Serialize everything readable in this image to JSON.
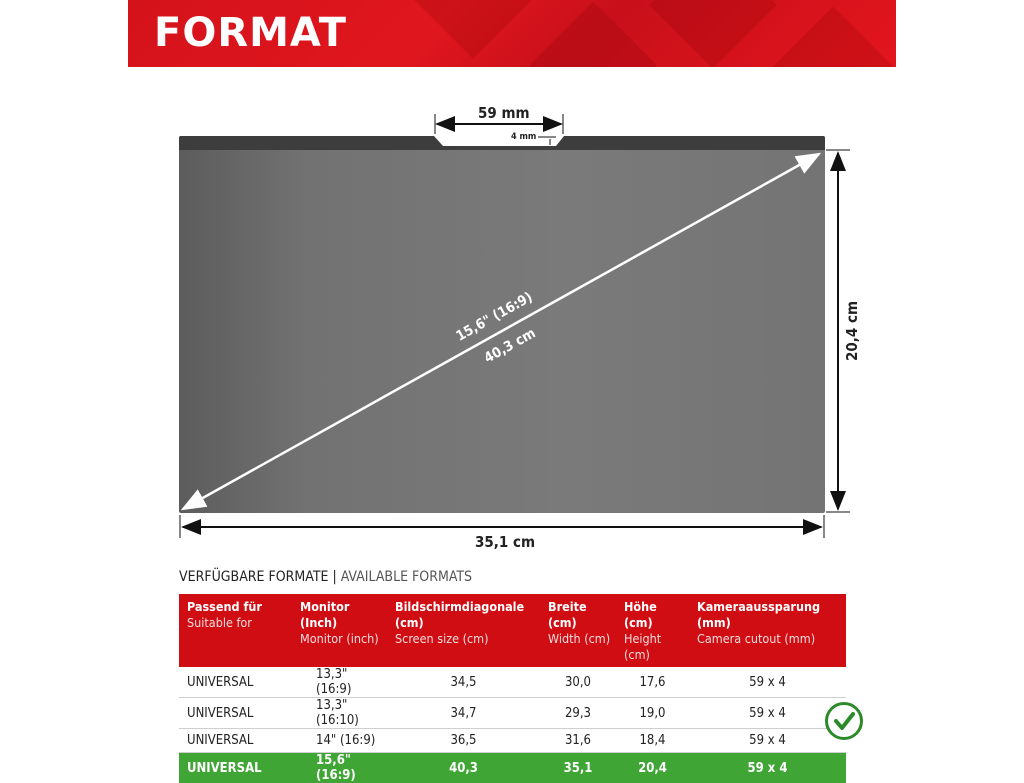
{
  "banner": {
    "title": "FORMAT",
    "color": "#d4121a"
  },
  "dimensions": {
    "cutout_width": "59 mm",
    "cutout_depth": "4 mm",
    "diagonal_inch": "15,6\" (16:9)",
    "diagonal_cm": "40,3 cm",
    "height": "20,4 cm",
    "width": "35,1 cm"
  },
  "section": {
    "title_de": "VERFÜGBARE FORMATE",
    "separator": " | ",
    "title_en": "AVAILABLE FORMATS"
  },
  "table": {
    "headers": [
      {
        "de": "Passend für",
        "en": "Suitable for"
      },
      {
        "de": "Monitor (Inch)",
        "en": "Monitor (inch)"
      },
      {
        "de": "Bildschirmdiagonale (cm)",
        "en": "Screen size (cm)"
      },
      {
        "de": "Breite (cm)",
        "en": "Width (cm)"
      },
      {
        "de": "Höhe (cm)",
        "en": "Height (cm)"
      },
      {
        "de": "Kameraaussparung (mm)",
        "en": "Camera cutout (mm)"
      }
    ],
    "rows": [
      [
        "UNIVERSAL",
        "13,3\" (16:9)",
        "34,5",
        "30,0",
        "17,6",
        "59 x 4"
      ],
      [
        "UNIVERSAL",
        "13,3\" (16:10)",
        "34,7",
        "29,3",
        "19,0",
        "59 x 4"
      ],
      [
        "UNIVERSAL",
        "14\" (16:9)",
        "36,5",
        "31,6",
        "18,4",
        "59 x 4"
      ],
      [
        "UNIVERSAL",
        "15,6\" (16:9)",
        "40,3",
        "35,1",
        "20,4",
        "59 x 4"
      ]
    ],
    "highlight_row": 3,
    "header_color": "#d10d14",
    "highlight_color": "#3fa535",
    "highlight_icon": "check-circle-icon"
  }
}
